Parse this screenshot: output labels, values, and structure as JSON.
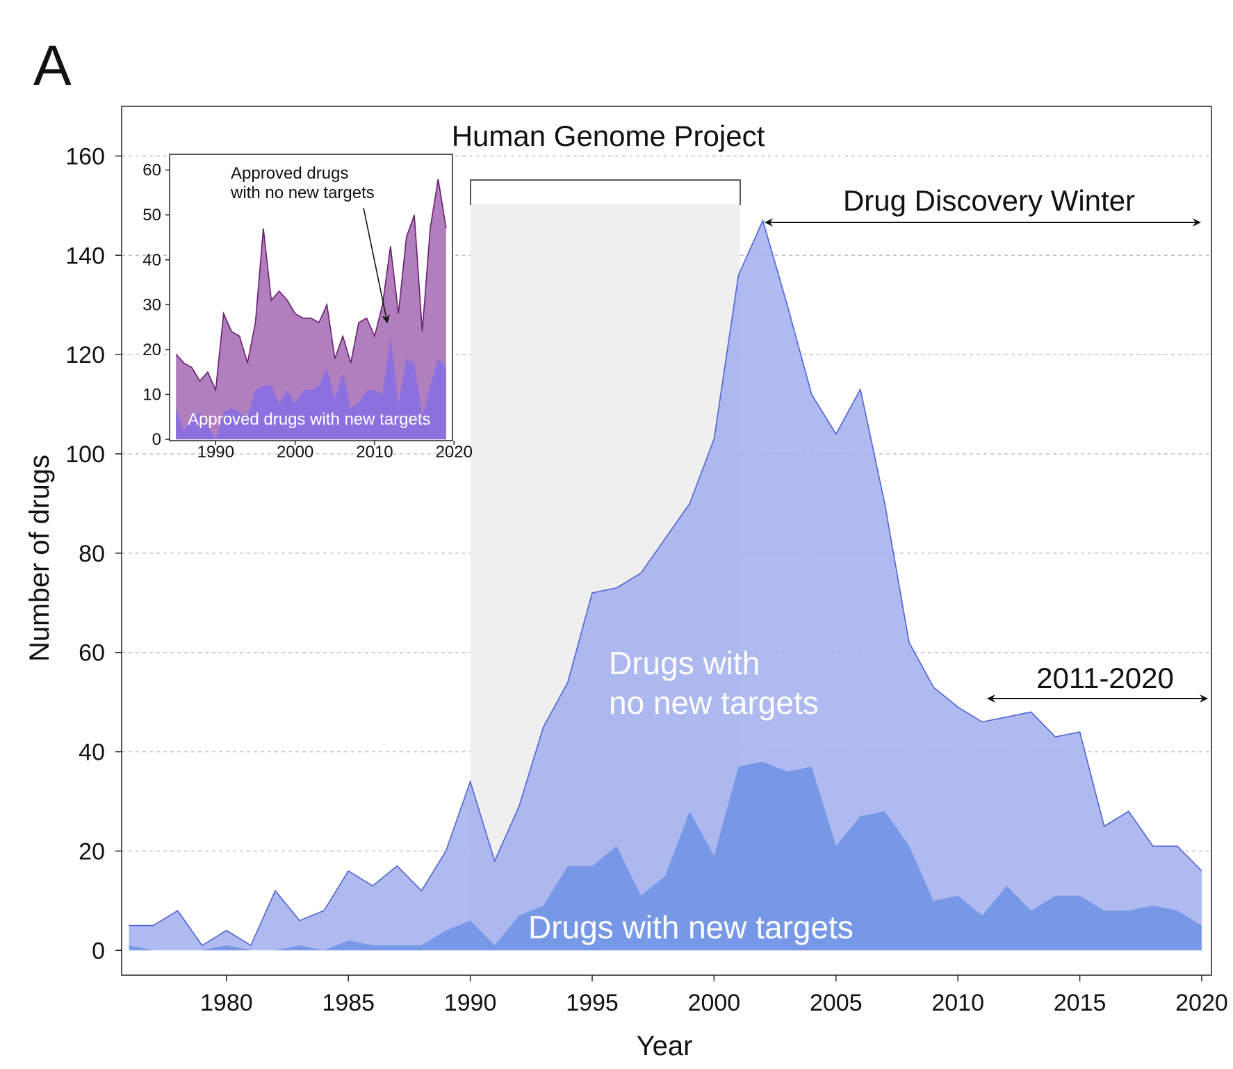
{
  "panel_label": "A",
  "chart_data": [
    {
      "type": "area",
      "title": "",
      "xlabel": "Year",
      "ylabel": "Number of drugs",
      "xlim": [
        1975.7,
        2020.4
      ],
      "ylim": [
        -5,
        170
      ],
      "x_ticks": [
        "1980",
        "1985",
        "1990",
        "1995",
        "2000",
        "2005",
        "2010",
        "2015",
        "2020"
      ],
      "y_ticks": [
        "0",
        "20",
        "40",
        "60",
        "80",
        "100",
        "120",
        "140",
        "160"
      ],
      "grid": "horizontal dashed",
      "x": [
        1976,
        1977,
        1978,
        1979,
        1980,
        1981,
        1982,
        1983,
        1984,
        1985,
        1986,
        1987,
        1988,
        1989,
        1990,
        1991,
        1992,
        1993,
        1994,
        1995,
        1996,
        1997,
        1998,
        1999,
        2000,
        2001,
        2002,
        2003,
        2004,
        2005,
        2006,
        2007,
        2008,
        2009,
        2010,
        2011,
        2012,
        2013,
        2014,
        2015,
        2016,
        2017,
        2018,
        2019,
        2020
      ],
      "series": [
        {
          "name": "Drugs with no new targets",
          "color": "#a3b1ee",
          "stroke": "#4d63d6",
          "values": [
            5,
            5,
            8,
            1,
            4,
            1,
            12,
            6,
            8,
            16,
            13,
            17,
            12,
            20,
            34,
            18,
            29,
            45,
            54,
            72,
            73,
            76,
            83,
            90,
            103,
            136,
            147,
            130,
            112,
            104,
            113,
            90,
            62,
            53,
            49,
            46,
            47,
            48,
            43,
            44,
            25,
            28,
            21,
            21,
            16
          ]
        },
        {
          "name": "Drugs with new targets",
          "color": "#6f93e5",
          "values": [
            1,
            0,
            0,
            0,
            1,
            0,
            0,
            1,
            0,
            2,
            1,
            1,
            1,
            4,
            6,
            1,
            7,
            9,
            17,
            17,
            21,
            11,
            15,
            28,
            19,
            37,
            38,
            36,
            37,
            21,
            27,
            28,
            21,
            10,
            11,
            7,
            13,
            8,
            11,
            11,
            8,
            8,
            9,
            8,
            5
          ]
        }
      ],
      "annotations": {
        "human_genome_project": {
          "label": "Human Genome Project",
          "from": 1990,
          "to": 2001,
          "color": "#efefef"
        },
        "drug_discovery_winter": {
          "label": "Drug Discovery Winter",
          "from": 2002,
          "to": 2020
        },
        "decade": {
          "label": "2011-2020",
          "from": 2011,
          "to": 2020
        },
        "label_no_new": [
          "Drugs with",
          "no new targets"
        ],
        "label_new": "Drugs with new targets"
      }
    },
    {
      "type": "area",
      "title": "",
      "xlim": [
        1984.2,
        2019.8
      ],
      "ylim": [
        -0.3,
        63.5
      ],
      "x_ticks": [
        "1990",
        "2000",
        "2010",
        "2020"
      ],
      "y_ticks": [
        "0",
        "10",
        "20",
        "30",
        "40",
        "50",
        "60"
      ],
      "x": [
        1985,
        1986,
        1987,
        1988,
        1989,
        1990,
        1991,
        1992,
        1993,
        1994,
        1995,
        1996,
        1997,
        1998,
        1999,
        2000,
        2001,
        2002,
        2003,
        2004,
        2005,
        2006,
        2007,
        2008,
        2009,
        2010,
        2011,
        2012,
        2013,
        2014,
        2015,
        2016,
        2017,
        2018,
        2019
      ],
      "series": [
        {
          "name": "Approved drugs with no new targets",
          "color": "#b17fbd",
          "stroke": "#6a1b6e",
          "values": [
            19,
            17,
            16,
            13,
            15,
            11,
            28,
            24,
            23,
            17,
            26,
            47,
            31,
            33,
            31,
            28,
            27,
            27,
            26,
            30,
            18,
            23,
            17,
            26,
            27,
            23,
            30,
            43,
            28,
            45,
            50,
            24,
            47,
            58,
            47
          ]
        },
        {
          "name": "Approved drugs with new targets",
          "color": "#8d70df",
          "values": [
            7,
            2,
            5,
            6,
            3,
            0,
            6,
            7,
            6,
            5,
            11,
            12,
            12,
            8,
            11,
            8,
            11,
            11,
            12,
            16,
            9,
            15,
            7,
            8,
            11,
            11,
            10,
            23,
            8,
            18,
            17,
            5,
            12,
            18,
            16
          ]
        }
      ],
      "annotations": {
        "no_new_label": [
          "Approved drugs",
          "with no new targets"
        ],
        "new_label": "Approved drugs with new targets",
        "arrow_target": {
          "x": 2011.6,
          "y": 26
        }
      }
    }
  ]
}
